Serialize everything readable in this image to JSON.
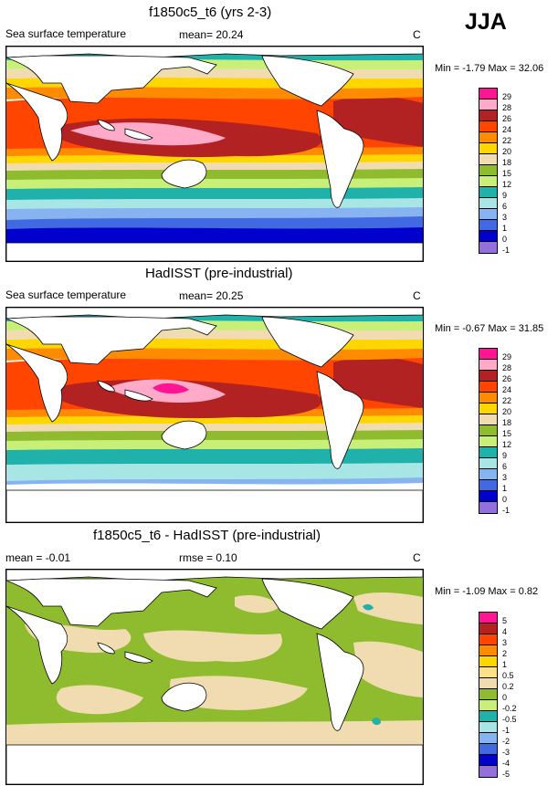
{
  "season": "JJA",
  "colors": {
    "c29": "#ff1493",
    "c28": "#ffaac8",
    "c26": "#b22222",
    "c24": "#ff4500",
    "c22": "#ff8c00",
    "c20": "#ffd700",
    "c18": "#f0dcb0",
    "c15": "#8fbc2f",
    "c12": "#c8f078",
    "c9": "#20b2aa",
    "c6": "#a8e6e6",
    "c3": "#87b4f0",
    "c1": "#4169e1",
    "c0": "#0000cd",
    "cm1": "#9370db",
    "d5": "#ff1493",
    "d4": "#b22222",
    "d3": "#ff4500",
    "d2": "#ff8c00",
    "d1": "#ffd700",
    "d05": "#ffe08a",
    "d02": "#f0dcb0",
    "d0": "#8fbc2f",
    "dm02": "#c8f078",
    "dm05": "#20b2aa",
    "dm1": "#a8e6e6",
    "dm2": "#87b4f0",
    "dm3": "#4169e1",
    "dm4": "#0000cd",
    "dm5": "#9370db"
  },
  "panels": [
    {
      "title": "f1850c5_t6 (yrs 2-3)",
      "left_label": "Sea surface temperature",
      "mid_label": "mean=  20.24",
      "units": "C",
      "minmax": "Min =  -1.79 Max =  32.06",
      "scale": [
        "29",
        "28",
        "26",
        "24",
        "22",
        "20",
        "18",
        "15",
        "12",
        "9",
        "6",
        "3",
        "1",
        "0",
        "-1"
      ]
    },
    {
      "title": "HadISST (pre-industrial)",
      "left_label": "Sea surface temperature",
      "mid_label": "mean=  20.25",
      "units": "C",
      "minmax": "Min =  -0.67 Max =  31.85",
      "scale": [
        "29",
        "28",
        "26",
        "24",
        "22",
        "20",
        "18",
        "15",
        "12",
        "9",
        "6",
        "3",
        "1",
        "0",
        "-1"
      ]
    },
    {
      "title": "f1850c5_t6 - HadISST (pre-industrial)",
      "left_label": "mean =  -0.01",
      "mid_label": "rmse =   0.10",
      "units": "C",
      "minmax": "Min =  -1.09 Max =   0.82",
      "scale": [
        "5",
        "4",
        "3",
        "2",
        "1",
        "0.5",
        "0.2",
        "0",
        "-0.2",
        "-0.5",
        "-1",
        "-2",
        "-3",
        "-4",
        "-5"
      ]
    }
  ]
}
